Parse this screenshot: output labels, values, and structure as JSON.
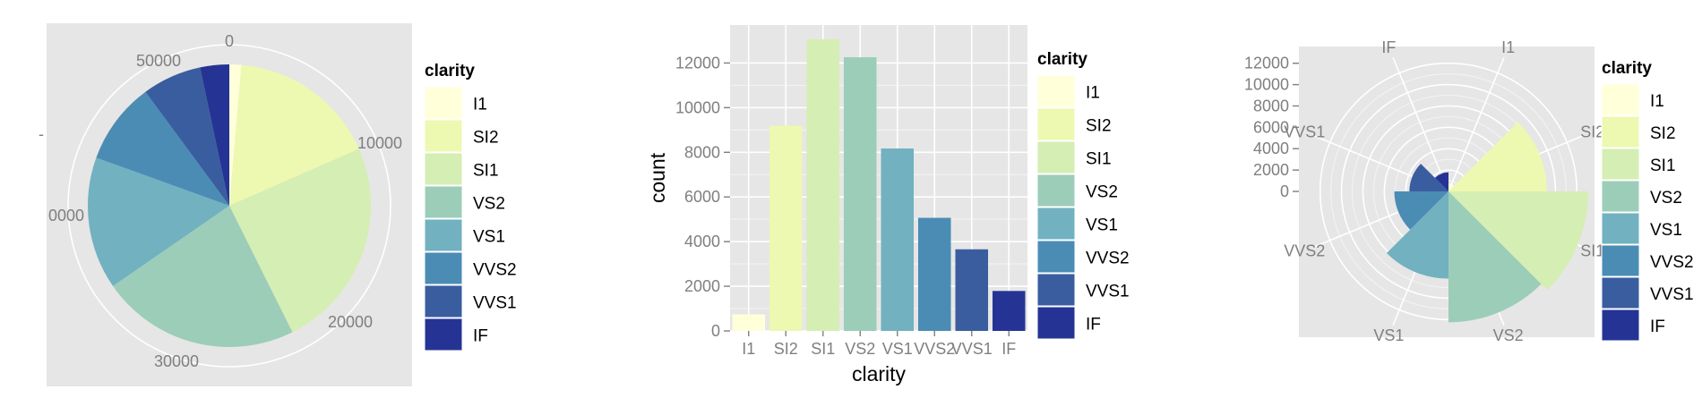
{
  "colors": {
    "panel_background": "#e6e6e6",
    "grid": "#ffffff",
    "palette": [
      "#ffffd9",
      "#edf8b1",
      "#d5eeb3",
      "#9ccdb8",
      "#72b1c0",
      "#4b8cb5",
      "#3a5d9f",
      "#253494"
    ]
  },
  "chart_data": [
    {
      "type": "pie",
      "legend_title": "clarity",
      "legend_position": "right",
      "categories": [
        "I1",
        "SI2",
        "SI1",
        "VS2",
        "VS1",
        "VVS2",
        "VVS1",
        "IF"
      ],
      "values": [
        741,
        9194,
        13065,
        12258,
        8171,
        5066,
        3655,
        1790
      ],
      "theta_ticks": [
        "0",
        "10000",
        "20000",
        "30000",
        "50000"
      ],
      "partial_tick": "0000",
      "y_tick_mark": "-"
    },
    {
      "type": "bar",
      "legend_title": "clarity",
      "legend_position": "right",
      "xlabel": "clarity",
      "ylabel": "count",
      "categories": [
        "I1",
        "SI2",
        "SI1",
        "VS2",
        "VS1",
        "VVS2",
        "VVS1",
        "IF"
      ],
      "values": [
        741,
        9194,
        13065,
        12258,
        8171,
        5066,
        3655,
        1790
      ],
      "ylim": [
        0,
        13700
      ],
      "yticks": [
        0,
        2000,
        4000,
        6000,
        8000,
        10000,
        12000
      ],
      "grid": true
    },
    {
      "type": "polar-bar",
      "legend_title": "clarity",
      "legend_position": "right",
      "categories": [
        "I1",
        "SI2",
        "SI1",
        "VS2",
        "VS1",
        "VVS2",
        "VVS1",
        "IF"
      ],
      "values": [
        741,
        9194,
        13065,
        12258,
        8171,
        5066,
        3655,
        1790
      ],
      "rlim": [
        0,
        13065
      ],
      "rticks": [
        0,
        2000,
        4000,
        6000,
        8000,
        10000,
        12000
      ],
      "grid": true
    }
  ]
}
